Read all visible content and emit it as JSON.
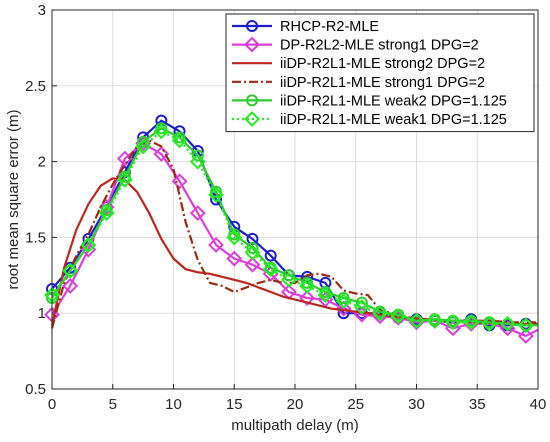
{
  "chart_data": {
    "type": "line",
    "xlabel": "multipath delay (m)",
    "ylabel": "root mean square error (m)",
    "xlim": [
      0,
      40
    ],
    "ylim": [
      0.5,
      3
    ],
    "x_ticks": [
      "0",
      "5",
      "10",
      "15",
      "20",
      "25",
      "30",
      "35",
      "40"
    ],
    "y_ticks": [
      "0.5",
      "1",
      "1.5",
      "2",
      "2.5",
      "3"
    ],
    "grid": true,
    "legend_position": "top-right",
    "series": [
      {
        "name": "RHCP-R2-MLE",
        "color": "#1f1fd0",
        "style": "solid",
        "marker": "circle",
        "x": [
          0,
          1.5,
          3,
          4.5,
          6,
          7.5,
          9,
          10.5,
          12,
          13.5,
          15,
          16.5,
          18,
          19.5,
          21,
          22.5,
          24,
          25.5,
          27,
          28.5,
          30,
          31.5,
          33,
          34.5,
          36,
          37.5,
          39,
          40
        ],
        "y": [
          1.16,
          1.3,
          1.49,
          1.7,
          1.93,
          2.16,
          2.27,
          2.2,
          2.07,
          1.75,
          1.57,
          1.49,
          1.38,
          1.25,
          1.24,
          1.2,
          1.0,
          1.0,
          1.0,
          0.97,
          0.96,
          0.95,
          0.94,
          0.96,
          0.92,
          0.92,
          0.93,
          0.93
        ]
      },
      {
        "name": "DP-R2L2-MLE strong1 DPG=2",
        "color": "#dd3ddd",
        "style": "solid",
        "marker": "diamond",
        "x": [
          0,
          1.5,
          3,
          4.5,
          6,
          7.5,
          9,
          10.5,
          12,
          13.5,
          15,
          16.5,
          18,
          19.5,
          21,
          22.5,
          24,
          25.5,
          27,
          28.5,
          30,
          31.5,
          33,
          34.5,
          36,
          37.5,
          39,
          40
        ],
        "y": [
          0.99,
          1.18,
          1.42,
          1.7,
          2.02,
          2.12,
          2.05,
          1.87,
          1.66,
          1.45,
          1.36,
          1.32,
          1.26,
          1.14,
          1.1,
          1.09,
          1.03,
          0.99,
          0.98,
          0.97,
          0.94,
          0.95,
          0.9,
          0.93,
          0.93,
          0.9,
          0.85,
          0.89
        ]
      },
      {
        "name": "iiDP-R2L1-MLE strong2 DPG=2",
        "color": "#c0251e",
        "style": "solid",
        "marker": "none",
        "x": [
          0,
          1,
          2,
          3,
          4,
          5,
          6,
          7,
          8,
          9,
          10,
          11,
          12,
          13,
          14,
          15,
          16,
          17,
          18,
          19,
          20,
          21,
          22,
          23,
          24,
          25,
          27,
          29,
          31,
          33,
          35,
          37,
          39,
          40
        ],
        "y": [
          0.92,
          1.3,
          1.55,
          1.72,
          1.84,
          1.89,
          1.88,
          1.8,
          1.66,
          1.49,
          1.36,
          1.29,
          1.27,
          1.26,
          1.24,
          1.22,
          1.2,
          1.17,
          1.14,
          1.11,
          1.09,
          1.07,
          1.05,
          1.03,
          1.02,
          1.01,
          0.99,
          0.97,
          0.96,
          0.95,
          0.94,
          0.93,
          0.93,
          0.93
        ]
      },
      {
        "name": "iiDP-R2L1-MLE strong1 DPG=2",
        "color": "#9a2a12",
        "style": "dashdot",
        "marker": "none",
        "x": [
          0,
          1,
          2,
          3,
          4,
          5,
          6,
          7,
          8,
          9,
          10,
          11,
          12,
          13,
          14,
          15,
          16,
          17,
          18,
          19,
          20,
          21,
          22,
          23,
          24,
          25,
          26,
          27,
          28,
          29,
          30,
          32,
          34,
          36,
          38,
          40
        ],
        "y": [
          0.9,
          1.2,
          1.38,
          1.52,
          1.7,
          1.85,
          1.98,
          2.1,
          2.14,
          2.1,
          1.95,
          1.6,
          1.35,
          1.2,
          1.18,
          1.14,
          1.17,
          1.2,
          1.22,
          1.2,
          1.2,
          1.25,
          1.26,
          1.24,
          1.15,
          1.13,
          1.12,
          1.02,
          1.0,
          0.98,
          0.96,
          0.95,
          0.95,
          0.95,
          0.94,
          0.94
        ]
      },
      {
        "name": "iiDP-R2L1-MLE weak2 DPG=1.125",
        "color": "#2fcc2f",
        "style": "solid",
        "marker": "circle",
        "x": [
          0,
          1.5,
          3,
          4.5,
          6,
          7.5,
          9,
          10.5,
          12,
          13.5,
          15,
          16.5,
          18,
          19.5,
          21,
          22.5,
          24,
          25.5,
          27,
          28.5,
          30,
          31.5,
          33,
          34.5,
          36,
          37.5,
          39,
          40
        ],
        "y": [
          1.1,
          1.28,
          1.45,
          1.68,
          1.9,
          2.13,
          2.22,
          2.16,
          2.04,
          1.8,
          1.52,
          1.43,
          1.3,
          1.25,
          1.2,
          1.14,
          1.1,
          1.07,
          1.01,
          0.99,
          0.95,
          0.96,
          0.95,
          0.95,
          0.94,
          0.93,
          0.92,
          0.92
        ]
      },
      {
        "name": "iiDP-R2L1-MLE weak1 DPG=1.125",
        "color": "#22ee22",
        "style": "dotted",
        "marker": "diamond",
        "x": [
          0,
          1.5,
          3,
          4.5,
          6,
          7.5,
          9,
          10.5,
          12,
          13.5,
          15,
          16.5,
          18,
          19.5,
          21,
          22.5,
          24,
          25.5,
          27,
          28.5,
          30,
          31.5,
          33,
          34.5,
          36,
          37.5,
          39,
          40
        ],
        "y": [
          1.12,
          1.28,
          1.45,
          1.66,
          1.88,
          2.1,
          2.2,
          2.14,
          2.0,
          1.78,
          1.5,
          1.4,
          1.29,
          1.22,
          1.18,
          1.12,
          1.08,
          1.04,
          1.0,
          0.98,
          0.95,
          0.95,
          0.94,
          0.94,
          0.93,
          0.93,
          0.92,
          0.92
        ]
      }
    ]
  }
}
